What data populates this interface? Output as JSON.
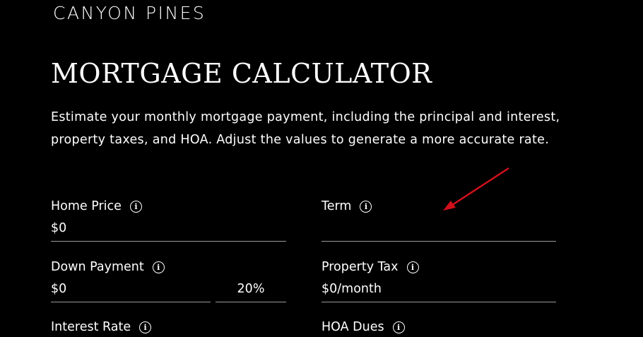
{
  "brand": "CANYON PINES",
  "title": "MORTGAGE CALCULATOR",
  "description": "Estimate your monthly mortgage payment, including the principal and interest, property taxes, and HOA. Adjust the values to generate a more accurate rate.",
  "fields": {
    "home_price": {
      "label": "Home Price",
      "value": "$0"
    },
    "term": {
      "label": "Term",
      "value": ""
    },
    "down_payment": {
      "label": "Down Payment",
      "value": "$0",
      "percent": "20%"
    },
    "property_tax": {
      "label": "Property Tax",
      "value": "$0/month"
    },
    "interest_rate": {
      "label": "Interest Rate"
    },
    "hoa_dues": {
      "label": "HOA Dues"
    }
  },
  "annotation": {
    "color": "#d0101a",
    "icon": "red-arrow-pointer"
  }
}
